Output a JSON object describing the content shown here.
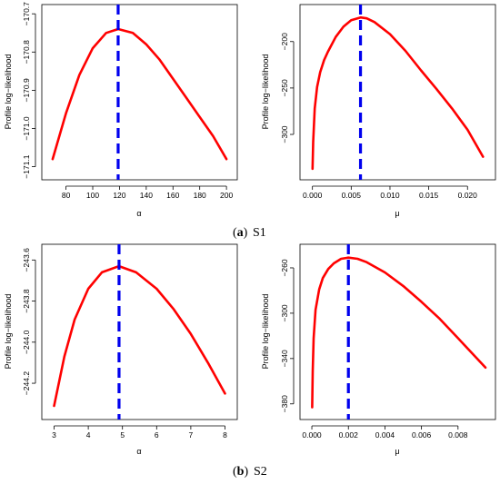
{
  "figure": {
    "captions": [
      {
        "label": "a",
        "text": "S1"
      },
      {
        "label": "b",
        "text": "S2"
      }
    ]
  },
  "colors": {
    "curve": "#ff0000",
    "mle_line": "#0000ee",
    "axis": "#000000"
  },
  "chart_data": [
    {
      "type": "line",
      "panel": "S1",
      "xlabel": "α",
      "ylabel": "Profile log−likelihood",
      "xlim": [
        66,
        204
      ],
      "ylim": [
        -171.12,
        -170.69
      ],
      "xticks": [
        80,
        100,
        120,
        140,
        160,
        180,
        200
      ],
      "yticks": [
        -171.1,
        -171.0,
        -170.9,
        -170.8,
        -170.7
      ],
      "ytick_labels": [
        "−171.1",
        "−171.0",
        "−170.9",
        "−170.8",
        "−170.7"
      ],
      "grid": false,
      "series": [
        {
          "style": "solid",
          "color": "#ff0000",
          "x": [
            70,
            80,
            90,
            100,
            110,
            119,
            130,
            140,
            150,
            160,
            170,
            180,
            190,
            200
          ],
          "y": [
            -171.08,
            -170.96,
            -170.86,
            -170.79,
            -170.75,
            -170.74,
            -170.75,
            -170.78,
            -170.82,
            -170.87,
            -170.92,
            -170.97,
            -171.02,
            -171.08
          ]
        }
      ],
      "mle_line": {
        "x": 119,
        "style": "dashed",
        "color": "#0000ee"
      }
    },
    {
      "type": "line",
      "panel": "S1",
      "xlabel": "μ",
      "ylabel": "Profile log−likelihood",
      "xlim": [
        -0.0009,
        0.0229
      ],
      "ylim": [
        -343,
        -166
      ],
      "xticks": [
        0.0,
        0.005,
        0.01,
        0.015,
        0.02
      ],
      "xtick_labels": [
        "0.000",
        "0.005",
        "0.010",
        "0.015",
        "0.020"
      ],
      "yticks": [
        -300,
        -250,
        -200
      ],
      "ytick_labels": [
        "−300",
        "−250",
        "−200"
      ],
      "grid": false,
      "series": [
        {
          "style": "solid",
          "color": "#ff0000",
          "x": [
            2e-05,
            0.0001,
            0.0003,
            0.0006,
            0.001,
            0.0015,
            0.002,
            0.003,
            0.004,
            0.005,
            0.0062,
            0.007,
            0.008,
            0.01,
            0.012,
            0.014,
            0.016,
            0.018,
            0.02,
            0.022
          ],
          "y": [
            -337,
            -308,
            -272,
            -249,
            -233,
            -220,
            -211,
            -195,
            -184,
            -177,
            -174,
            -175,
            -179,
            -192,
            -210,
            -231,
            -251,
            -272,
            -295,
            -324
          ]
        }
      ],
      "mle_line": {
        "x": 0.0062,
        "style": "dashed",
        "color": "#0000ee"
      }
    },
    {
      "type": "line",
      "panel": "S2",
      "xlabel": "α",
      "ylabel": "Profile log−likelihood",
      "xlim": [
        2.8,
        8.2
      ],
      "ylim": [
        -244.35,
        -243.55
      ],
      "xticks": [
        3,
        4,
        5,
        6,
        7,
        8
      ],
      "yticks": [
        -244.2,
        -244.0,
        -243.8,
        -243.6
      ],
      "ytick_labels": [
        "−244.2",
        "−244.0",
        "−243.8",
        "−243.6"
      ],
      "grid": false,
      "series": [
        {
          "style": "solid",
          "color": "#ff0000",
          "x": [
            3.0,
            3.3,
            3.6,
            4.0,
            4.4,
            4.9,
            5.4,
            6.0,
            6.5,
            7.0,
            7.5,
            8.0
          ],
          "y": [
            -244.31,
            -244.07,
            -243.89,
            -243.74,
            -243.66,
            -243.63,
            -243.66,
            -243.74,
            -243.84,
            -243.96,
            -244.1,
            -244.25
          ]
        }
      ],
      "mle_line": {
        "x": 4.9,
        "style": "dashed",
        "color": "#0000ee"
      }
    },
    {
      "type": "line",
      "panel": "S2",
      "xlabel": "μ",
      "ylabel": "Profile log−likelihood",
      "xlim": [
        -0.00035,
        0.00975
      ],
      "ylim": [
        -389,
        -244
      ],
      "xticks": [
        0.0,
        0.002,
        0.004,
        0.006,
        0.008
      ],
      "xtick_labels": [
        "0.000",
        "0.002",
        "0.004",
        "0.006",
        "0.008"
      ],
      "yticks": [
        -380,
        -340,
        -300,
        -260
      ],
      "ytick_labels": [
        "−380",
        "−340",
        "−300",
        "−260"
      ],
      "grid": false,
      "series": [
        {
          "style": "solid",
          "color": "#ff0000",
          "x": [
            2e-05,
            5e-05,
            0.0001,
            0.0002,
            0.0004,
            0.0006,
            0.0009,
            0.0012,
            0.0016,
            0.002,
            0.0025,
            0.003,
            0.004,
            0.005,
            0.006,
            0.007,
            0.008,
            0.0095
          ],
          "y": [
            -383,
            -351,
            -322,
            -297,
            -279,
            -269,
            -261,
            -256,
            -252,
            -251,
            -252,
            -255,
            -264,
            -276,
            -290,
            -305,
            -322,
            -348
          ]
        }
      ],
      "mle_line": {
        "x": 0.002,
        "style": "dashed",
        "color": "#0000ee"
      }
    }
  ]
}
